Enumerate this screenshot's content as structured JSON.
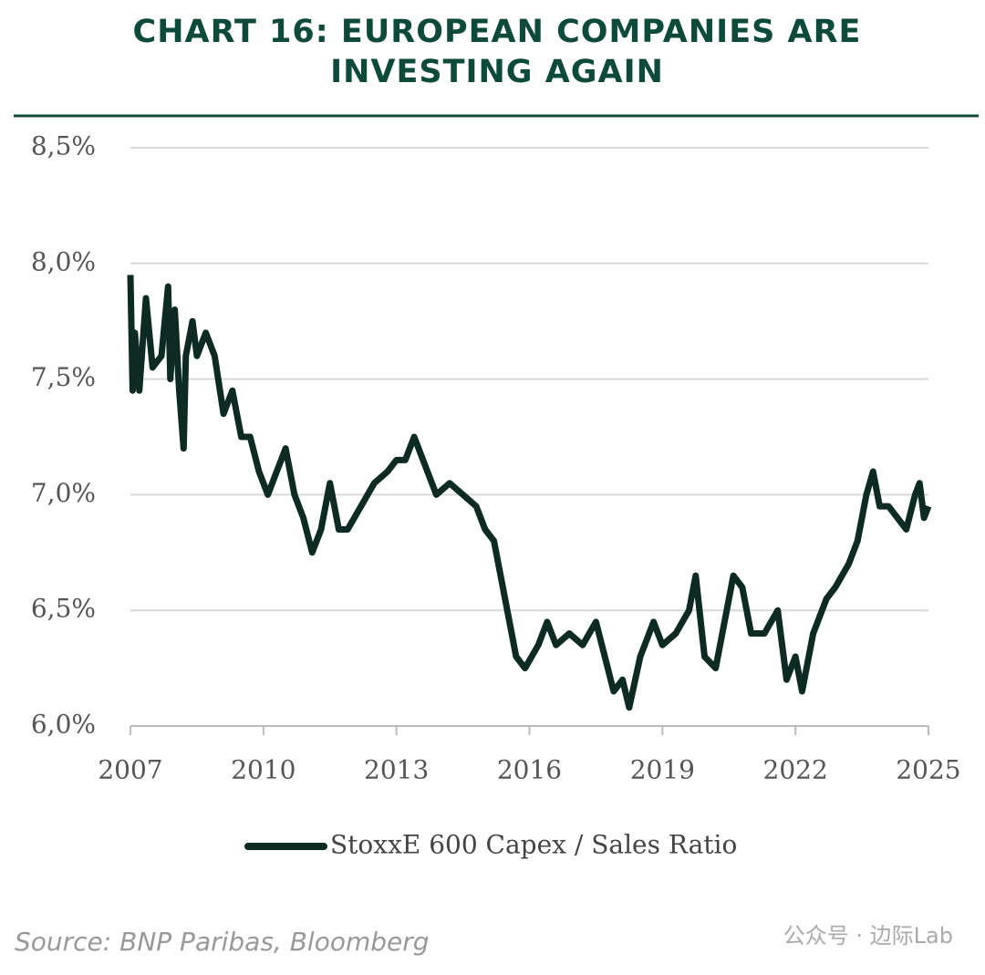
{
  "chart_data": {
    "type": "line",
    "title": [
      "CHART 16: EUROPEAN COMPANIES ARE",
      "INVESTING AGAIN"
    ],
    "source": "Source: BNP Paribas, Bloomberg",
    "watermark": "公众号 · 边际Lab",
    "x": [
      2007.0,
      2007.05,
      2007.1,
      2007.2,
      2007.35,
      2007.5,
      2007.7,
      2007.85,
      2007.9,
      2008.0,
      2008.1,
      2008.2,
      2008.25,
      2008.4,
      2008.5,
      2008.7,
      2008.9,
      2009.1,
      2009.3,
      2009.5,
      2009.7,
      2009.9,
      2010.1,
      2010.3,
      2010.5,
      2010.7,
      2010.9,
      2011.1,
      2011.3,
      2011.5,
      2011.7,
      2011.9,
      2012.2,
      2012.5,
      2012.8,
      2013.0,
      2013.2,
      2013.4,
      2013.6,
      2013.9,
      2014.2,
      2014.5,
      2014.8,
      2015.0,
      2015.2,
      2015.5,
      2015.7,
      2015.9,
      2016.2,
      2016.4,
      2016.6,
      2016.9,
      2017.2,
      2017.5,
      2017.7,
      2017.9,
      2018.1,
      2018.25,
      2018.5,
      2018.8,
      2019.0,
      2019.3,
      2019.6,
      2019.75,
      2019.95,
      2020.2,
      2020.4,
      2020.6,
      2020.8,
      2021.0,
      2021.3,
      2021.6,
      2021.8,
      2022.0,
      2022.15,
      2022.4,
      2022.7,
      2022.9,
      2023.2,
      2023.4,
      2023.6,
      2023.75,
      2023.9,
      2024.1,
      2024.3,
      2024.5,
      2024.7,
      2024.8,
      2024.9,
      2025.0
    ],
    "series": [
      {
        "name": "StoxxE 600 Capex / Sales Ratio",
        "color": "#0d2b22",
        "values": [
          7.95,
          7.45,
          7.7,
          7.45,
          7.85,
          7.55,
          7.6,
          7.9,
          7.5,
          7.8,
          7.45,
          7.2,
          7.6,
          7.75,
          7.6,
          7.7,
          7.6,
          7.35,
          7.45,
          7.25,
          7.25,
          7.1,
          7.0,
          7.1,
          7.2,
          7.0,
          6.9,
          6.75,
          6.85,
          7.05,
          6.85,
          6.85,
          6.95,
          7.05,
          7.1,
          7.15,
          7.15,
          7.25,
          7.15,
          7.0,
          7.05,
          7.0,
          6.95,
          6.85,
          6.8,
          6.5,
          6.3,
          6.25,
          6.35,
          6.45,
          6.35,
          6.4,
          6.35,
          6.45,
          6.3,
          6.15,
          6.2,
          6.08,
          6.3,
          6.45,
          6.35,
          6.4,
          6.5,
          6.65,
          6.3,
          6.25,
          6.45,
          6.65,
          6.6,
          6.4,
          6.4,
          6.5,
          6.2,
          6.3,
          6.15,
          6.4,
          6.55,
          6.6,
          6.7,
          6.8,
          7.0,
          7.1,
          6.95,
          6.95,
          6.9,
          6.85,
          7.0,
          7.05,
          6.9,
          6.95
        ]
      }
    ],
    "xlim": [
      2007,
      2025
    ],
    "xticks": [
      2007,
      2010,
      2013,
      2016,
      2019,
      2022,
      2025
    ],
    "ylim": [
      6.0,
      8.5
    ],
    "yticks": [
      {
        "value": 6.0,
        "label": "6,0%"
      },
      {
        "value": 6.5,
        "label": "6,5%"
      },
      {
        "value": 7.0,
        "label": "7,0%"
      },
      {
        "value": 7.5,
        "label": "7,5%"
      },
      {
        "value": 8.0,
        "label": "8,0%"
      },
      {
        "value": 8.5,
        "label": "8,5%"
      }
    ],
    "grid": true
  }
}
